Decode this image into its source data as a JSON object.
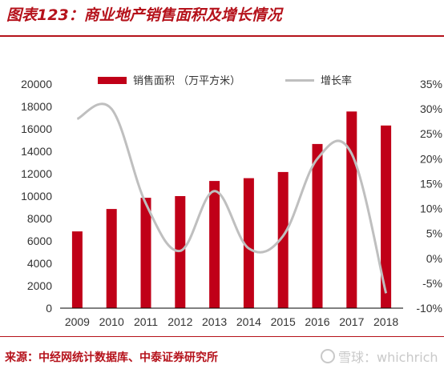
{
  "header": {
    "title": "图表123：商业地产销售面积及增长情况"
  },
  "footer": {
    "source": "来源：中经网统计数据库、中泰证券研究所",
    "watermark": "雪球：whichrich"
  },
  "chart_data": {
    "type": "bar",
    "categories": [
      "2009",
      "2010",
      "2011",
      "2012",
      "2013",
      "2014",
      "2015",
      "2016",
      "2017",
      "2018"
    ],
    "series": [
      {
        "name": "销售面积 （万平方米）",
        "type": "bar",
        "axis": "left",
        "values": [
          6850,
          8850,
          9850,
          10000,
          11350,
          11600,
          12150,
          14650,
          17550,
          16300
        ]
      },
      {
        "name": "增长率",
        "type": "line",
        "axis": "right",
        "values": [
          28,
          30,
          11,
          1.5,
          13.5,
          2,
          4.5,
          20,
          21,
          -7
        ]
      }
    ],
    "y_left": {
      "ticks": [
        "0",
        "2000",
        "4000",
        "6000",
        "8000",
        "10000",
        "12000",
        "14000",
        "16000",
        "18000",
        "20000"
      ],
      "lim": [
        0,
        20000
      ]
    },
    "y_right": {
      "ticks": [
        "-10%",
        "-5%",
        "0%",
        "5%",
        "10%",
        "15%",
        "20%",
        "25%",
        "30%",
        "35%"
      ],
      "lim": [
        -10,
        35
      ]
    },
    "colors": {
      "bar": "#c00018",
      "line": "#bfbfbf",
      "accent": "#b5121b"
    },
    "legend_position": "top",
    "grid": false
  }
}
